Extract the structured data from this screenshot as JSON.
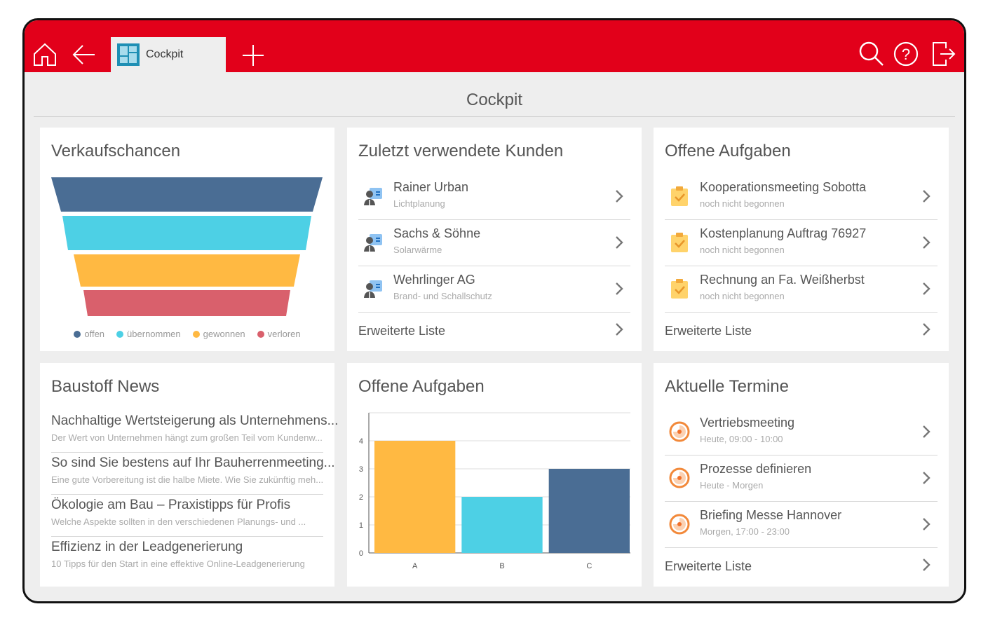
{
  "header": {
    "tab_label": "Cockpit",
    "icons": [
      "home-icon",
      "back-arrow-icon",
      "add-tab-icon",
      "search-icon",
      "help-icon",
      "logout-icon"
    ]
  },
  "page_title": "Cockpit",
  "colors": {
    "brand": "#e2001a",
    "offen": "#4a6d94",
    "uebernommen": "#4dd0e5",
    "gewonnen": "#ffb942",
    "verloren": "#d9606c"
  },
  "sales": {
    "title": "Verkaufschancen",
    "legend": [
      "offen",
      "übernommen",
      "gewonnen",
      "verloren"
    ]
  },
  "customers": {
    "title": "Zuletzt verwendete Kunden",
    "items": [
      {
        "name": "Rainer Urban",
        "sub": "Lichtplanung"
      },
      {
        "name": "Sachs & Söhne",
        "sub": "Solarwärme"
      },
      {
        "name": "Wehrlinger AG",
        "sub": "Brand- und Schallschutz"
      }
    ],
    "more": "Erweiterte Liste"
  },
  "tasks": {
    "title": "Offene Aufgaben",
    "items": [
      {
        "name": "Kooperationsmeeting Sobotta",
        "sub": "noch nicht begonnen"
      },
      {
        "name": "Kostenplanung Auftrag 76927",
        "sub": "noch nicht begonnen"
      },
      {
        "name": "Rechnung an Fa. Weißherbst",
        "sub": "noch nicht begonnen"
      }
    ],
    "more": "Erweiterte Liste"
  },
  "news": {
    "title": "Baustoff News",
    "items": [
      {
        "title": "Nachhaltige Wertsteigerung als Unternehmens...",
        "sub": "Der Wert von Unternehmen hängt zum großen Teil vom Kundenw..."
      },
      {
        "title": "So sind Sie bestens auf Ihr Bauherrenmeeting...",
        "sub": "Eine gute Vorbereitung ist die halbe Miete. Wie Sie zukünftig meh..."
      },
      {
        "title": "Ökologie am Bau – Praxistipps für Profis",
        "sub": "Welche Aspekte sollten in den verschiedenen Planungs- und ..."
      },
      {
        "title": "Effizienz in der Leadgenerierung",
        "sub": "10 Tipps für den Start in eine effektive Online-Leadgenerierung"
      }
    ]
  },
  "chart_title": "Offene Aufgaben",
  "chart_data": {
    "type": "bar",
    "title": "Offene Aufgaben",
    "categories": [
      "A",
      "B",
      "C"
    ],
    "values": [
      4,
      2,
      3
    ],
    "colors": [
      "#ffb942",
      "#4dd0e5",
      "#4a6d94"
    ],
    "ylim": [
      0,
      5
    ],
    "yticks": [
      "0",
      "1",
      "2",
      "3",
      "4"
    ],
    "grid": true
  },
  "appointments": {
    "title": "Aktuelle Termine",
    "items": [
      {
        "name": "Vertriebsmeeting",
        "sub": "Heute, 09:00 - 10:00"
      },
      {
        "name": "Prozesse definieren",
        "sub": "Heute - Morgen"
      },
      {
        "name": "Briefing Messe Hannover",
        "sub": "Morgen, 17:00 - 23:00"
      }
    ],
    "more": "Erweiterte Liste"
  }
}
